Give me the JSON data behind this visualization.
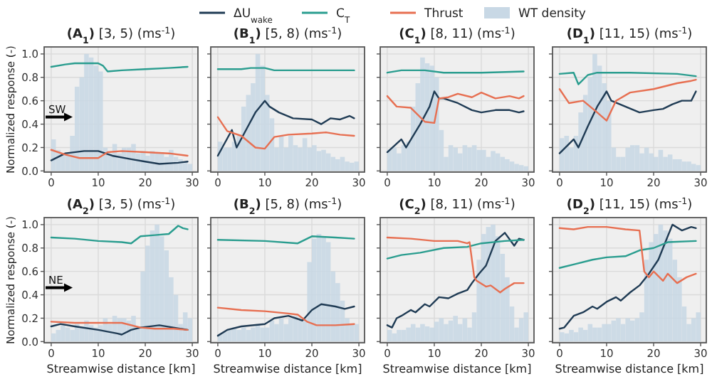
{
  "chart_data": [
    {
      "type": "line",
      "title": "(A$_{1}$) [3, 5) (ms$^{-1}$)",
      "ylabel": "Normalized response (-)",
      "xlim": [
        -1.5,
        31.2
      ],
      "ylim": [
        -0.01,
        1.06
      ],
      "xticks": [
        0,
        10,
        20,
        30
      ],
      "yticks": [
        {
          "value": 0,
          "label": "0.0"
        },
        {
          "value": 0.2,
          "label": "0.2"
        },
        {
          "value": 0.4,
          "label": "0.4"
        },
        {
          "value": 0.6,
          "label": "0.6"
        },
        {
          "value": 0.8,
          "label": "0.8"
        },
        {
          "value": 1,
          "label": "1.0"
        }
      ],
      "grid": true,
      "legend": "top",
      "annotations": [
        "SW"
      ],
      "series": [
        {
          "name": "ΔU$_{wake}$",
          "color": "#1f3b54",
          "x": [
            0,
            3,
            7,
            10,
            13,
            17,
            20,
            23,
            27,
            29
          ],
          "values": [
            0.09,
            0.15,
            0.17,
            0.17,
            0.13,
            0.1,
            0.08,
            0.06,
            0.07,
            0.08
          ]
        },
        {
          "name": "C$_{T}$",
          "color": "#2a9d8f",
          "x": [
            0,
            3,
            5,
            10,
            11,
            12,
            15,
            20,
            25,
            29
          ],
          "values": [
            0.89,
            0.91,
            0.92,
            0.92,
            0.9,
            0.85,
            0.86,
            0.87,
            0.88,
            0.89
          ]
        },
        {
          "name": "Thrust",
          "color": "#e76f51",
          "x": [
            0,
            3,
            6,
            10,
            12,
            15,
            20,
            25,
            29
          ],
          "values": [
            0.18,
            0.14,
            0.11,
            0.11,
            0.16,
            0.17,
            0.16,
            0.15,
            0.13
          ]
        },
        {
          "name": "WT density",
          "type": "histogram",
          "color": "#c8d8e5",
          "bins": [
            0,
            1,
            2,
            3,
            4,
            5,
            6,
            7,
            8,
            9,
            10,
            11,
            12,
            13,
            14,
            15,
            16,
            17,
            18,
            19,
            20,
            21,
            22,
            23,
            24,
            25,
            26,
            27,
            28,
            29,
            30
          ],
          "values": [
            0.27,
            0.18,
            0.15,
            0.15,
            0.3,
            0.72,
            0.8,
            1.0,
            0.97,
            0.9,
            0.85,
            0.2,
            0.15,
            0.23,
            0.15,
            0.2,
            0.2,
            0.23,
            0.15,
            0.17,
            0.13,
            0.17,
            0.15,
            0.16,
            0.12,
            0.18,
            0.12,
            0.1,
            0.08,
            0.06
          ]
        }
      ]
    },
    {
      "type": "line",
      "title": "(B$_{1}$) [5, 8) (ms$^{-1}$)",
      "tick_labels": "x",
      "xlim": [
        -1.5,
        31.2
      ],
      "ylim": [
        -0.01,
        1.06
      ],
      "xticks": [
        0,
        10,
        20,
        30
      ],
      "yticks": [
        {
          "value": 0,
          "label": null
        },
        {
          "value": 0.2,
          "label": null
        },
        {
          "value": 0.4,
          "label": null
        },
        {
          "value": 0.6,
          "label": null
        },
        {
          "value": 0.8,
          "label": null
        },
        {
          "value": 1,
          "label": null
        }
      ],
      "grid": true,
      "series": [
        {
          "color": "#1f3b54",
          "x": [
            0,
            3,
            4,
            6,
            8,
            10,
            11,
            13,
            16,
            20,
            22,
            24,
            26,
            28,
            29
          ],
          "values": [
            0.13,
            0.35,
            0.2,
            0.35,
            0.5,
            0.6,
            0.55,
            0.5,
            0.45,
            0.44,
            0.4,
            0.45,
            0.44,
            0.47,
            0.45
          ]
        },
        {
          "color": "#2a9d8f",
          "x": [
            0,
            5,
            7,
            10,
            12,
            20,
            29
          ],
          "values": [
            0.87,
            0.87,
            0.88,
            0.88,
            0.86,
            0.86,
            0.86
          ]
        },
        {
          "color": "#e76f51",
          "x": [
            0,
            2,
            5,
            8,
            10,
            12,
            15,
            20,
            23,
            26,
            29
          ],
          "values": [
            0.46,
            0.34,
            0.3,
            0.2,
            0.19,
            0.29,
            0.31,
            0.32,
            0.33,
            0.31,
            0.3
          ]
        },
        {
          "type": "histogram",
          "color": "#c8d8e5",
          "bins": [
            0,
            1,
            2,
            3,
            4,
            5,
            6,
            7,
            8,
            9,
            10,
            11,
            12,
            13,
            14,
            15,
            16,
            17,
            18,
            19,
            20,
            21,
            22,
            23,
            24,
            25,
            26,
            27,
            28,
            29,
            30
          ],
          "values": [
            0.25,
            0.2,
            0.2,
            0.25,
            0.3,
            0.55,
            0.65,
            0.75,
            1.0,
            0.9,
            0.65,
            0.45,
            0.2,
            0.3,
            0.2,
            0.3,
            0.22,
            0.2,
            0.28,
            0.2,
            0.22,
            0.17,
            0.18,
            0.15,
            0.12,
            0.1,
            0.12,
            0.08,
            0.07,
            0.08
          ]
        }
      ]
    },
    {
      "type": "line",
      "title": "(C$_{1}$) [8, 11) (ms$^{-1}$)",
      "tick_labels": "x",
      "xlim": [
        -1.5,
        31.2
      ],
      "ylim": [
        -0.01,
        1.06
      ],
      "xticks": [
        0,
        10,
        20,
        30
      ],
      "yticks": [
        {
          "value": 0,
          "label": null
        },
        {
          "value": 0.2,
          "label": null
        },
        {
          "value": 0.4,
          "label": null
        },
        {
          "value": 0.6,
          "label": null
        },
        {
          "value": 0.8,
          "label": null
        },
        {
          "value": 1,
          "label": null
        }
      ],
      "grid": true,
      "series": [
        {
          "color": "#1f3b54",
          "x": [
            0,
            3,
            4,
            7,
            9,
            10,
            11,
            12,
            15,
            18,
            20,
            23,
            26,
            28,
            29
          ],
          "values": [
            0.16,
            0.27,
            0.2,
            0.4,
            0.55,
            0.68,
            0.62,
            0.62,
            0.58,
            0.52,
            0.5,
            0.52,
            0.52,
            0.5,
            0.51
          ]
        },
        {
          "color": "#2a9d8f",
          "x": [
            0,
            3,
            8,
            12,
            20,
            29
          ],
          "values": [
            0.84,
            0.86,
            0.86,
            0.84,
            0.84,
            0.85
          ]
        },
        {
          "color": "#e76f51",
          "x": [
            0,
            2,
            5,
            8,
            10,
            11,
            13,
            15,
            18,
            20,
            23,
            26,
            28,
            29
          ],
          "values": [
            0.64,
            0.55,
            0.54,
            0.42,
            0.41,
            0.62,
            0.63,
            0.66,
            0.63,
            0.67,
            0.62,
            0.64,
            0.62,
            0.64
          ]
        },
        {
          "type": "histogram",
          "color": "#c8d8e5",
          "bins": [
            0,
            1,
            2,
            3,
            4,
            5,
            6,
            7,
            8,
            9,
            10,
            11,
            12,
            13,
            14,
            15,
            16,
            17,
            18,
            19,
            20,
            21,
            22,
            23,
            24,
            25,
            26,
            27,
            28,
            29,
            30
          ],
          "values": [
            0.18,
            0.2,
            0.15,
            0.22,
            0.25,
            0.55,
            0.75,
            0.97,
            0.92,
            0.9,
            0.8,
            0.35,
            0.12,
            0.22,
            0.2,
            0.15,
            0.22,
            0.2,
            0.22,
            0.18,
            0.18,
            0.12,
            0.17,
            0.15,
            0.12,
            0.1,
            0.08,
            0.06,
            0.05,
            0.04
          ]
        }
      ]
    },
    {
      "type": "line",
      "title": "(D$_{1}$) [11, 15) (ms$^{-1}$)",
      "tick_labels": "x",
      "xlim": [
        -1.5,
        31.2
      ],
      "ylim": [
        -0.01,
        1.06
      ],
      "xticks": [
        0,
        10,
        20,
        30
      ],
      "yticks": [
        {
          "value": 0,
          "label": null
        },
        {
          "value": 0.2,
          "label": null
        },
        {
          "value": 0.4,
          "label": null
        },
        {
          "value": 0.6,
          "label": null
        },
        {
          "value": 0.8,
          "label": null
        },
        {
          "value": 1,
          "label": null
        }
      ],
      "grid": true,
      "series": [
        {
          "color": "#1f3b54",
          "x": [
            0,
            3,
            4,
            6,
            8,
            10,
            11,
            14,
            17,
            20,
            22,
            24,
            26,
            28,
            29
          ],
          "values": [
            0.15,
            0.27,
            0.2,
            0.38,
            0.55,
            0.68,
            0.6,
            0.55,
            0.5,
            0.52,
            0.53,
            0.57,
            0.6,
            0.6,
            0.68
          ]
        },
        {
          "color": "#2a9d8f",
          "x": [
            0,
            3,
            4,
            6,
            8,
            15,
            25,
            29
          ],
          "values": [
            0.83,
            0.84,
            0.74,
            0.82,
            0.84,
            0.84,
            0.83,
            0.81
          ]
        },
        {
          "color": "#e76f51",
          "x": [
            0,
            2,
            5,
            8,
            10,
            12,
            15,
            20,
            25,
            28,
            29
          ],
          "values": [
            0.7,
            0.58,
            0.6,
            0.5,
            0.43,
            0.6,
            0.67,
            0.7,
            0.75,
            0.77,
            0.78
          ]
        },
        {
          "type": "histogram",
          "color": "#c8d8e5",
          "bins": [
            0,
            1,
            2,
            3,
            4,
            5,
            6,
            7,
            8,
            9,
            10,
            11,
            12,
            13,
            14,
            15,
            16,
            17,
            18,
            19,
            20,
            21,
            22,
            23,
            24,
            25,
            26,
            27,
            28,
            29,
            30
          ],
          "values": [
            0.28,
            0.3,
            0.2,
            0.3,
            0.5,
            0.65,
            0.8,
            1.0,
            0.9,
            0.75,
            0.6,
            0.2,
            0.12,
            0.12,
            0.2,
            0.22,
            0.22,
            0.15,
            0.2,
            0.15,
            0.12,
            0.18,
            0.12,
            0.14,
            0.1,
            0.1,
            0.08,
            0.08,
            0.06,
            0.05
          ]
        }
      ]
    },
    {
      "type": "line",
      "title": "(A$_{2}$) [3, 5) (ms$^{-1}$)",
      "xlabel": "Streamwise distance [km]",
      "ylabel": "Normalized response (-)",
      "xlim": [
        -1.5,
        31.2
      ],
      "ylim": [
        -0.01,
        1.06
      ],
      "xticks": [
        0,
        10,
        20,
        30
      ],
      "yticks": [
        {
          "value": 0,
          "label": "0.0"
        },
        {
          "value": 0.2,
          "label": "0.2"
        },
        {
          "value": 0.4,
          "label": "0.4"
        },
        {
          "value": 0.6,
          "label": "0.6"
        },
        {
          "value": 0.8,
          "label": "0.8"
        },
        {
          "value": 1,
          "label": "1.0"
        }
      ],
      "grid": true,
      "annotations": [
        "NE"
      ],
      "series": [
        {
          "color": "#1f3b54",
          "x": [
            0,
            2,
            5,
            10,
            14,
            15,
            17,
            19,
            23,
            26,
            29
          ],
          "values": [
            0.13,
            0.15,
            0.13,
            0.1,
            0.07,
            0.06,
            0.1,
            0.12,
            0.14,
            0.12,
            0.1
          ]
        },
        {
          "color": "#2a9d8f",
          "x": [
            0,
            5,
            10,
            15,
            17,
            19,
            22,
            25,
            27,
            28,
            29
          ],
          "values": [
            0.89,
            0.88,
            0.86,
            0.85,
            0.84,
            0.9,
            0.91,
            0.92,
            0.99,
            0.97,
            0.96
          ]
        },
        {
          "color": "#e76f51",
          "x": [
            0,
            5,
            10,
            15,
            19,
            22,
            26,
            29
          ],
          "values": [
            0.17,
            0.16,
            0.16,
            0.16,
            0.12,
            0.11,
            0.11,
            0.1
          ]
        },
        {
          "type": "histogram",
          "color": "#c8d8e5",
          "bins": [
            0,
            1,
            2,
            3,
            4,
            5,
            6,
            7,
            8,
            9,
            10,
            11,
            12,
            13,
            14,
            15,
            16,
            17,
            18,
            19,
            20,
            21,
            22,
            23,
            24,
            25,
            26,
            27,
            28,
            29,
            30
          ],
          "values": [
            0.07,
            0.1,
            0.15,
            0.12,
            0.1,
            0.15,
            0.13,
            0.18,
            0.14,
            0.12,
            0.14,
            0.2,
            0.15,
            0.22,
            0.2,
            0.2,
            0.18,
            0.22,
            0.12,
            0.6,
            0.82,
            0.95,
            1.0,
            0.9,
            0.78,
            0.55,
            0.4,
            0.15,
            0.25,
            0.2
          ]
        }
      ]
    },
    {
      "type": "line",
      "title": "(B$_{2}$) [5, 8) (ms$^{-1}$)",
      "xlabel": "Streamwise distance [km]",
      "tick_labels": "x",
      "xlim": [
        -1.5,
        31.2
      ],
      "ylim": [
        -0.01,
        1.06
      ],
      "xticks": [
        0,
        10,
        20,
        30
      ],
      "yticks": [
        {
          "value": 0,
          "label": null
        },
        {
          "value": 0.2,
          "label": null
        },
        {
          "value": 0.4,
          "label": null
        },
        {
          "value": 0.6,
          "label": null
        },
        {
          "value": 0.8,
          "label": null
        },
        {
          "value": 1,
          "label": null
        }
      ],
      "grid": true,
      "series": [
        {
          "color": "#1f3b54",
          "x": [
            0,
            2,
            5,
            10,
            12,
            15,
            18,
            20,
            22,
            25,
            27,
            29
          ],
          "values": [
            0.05,
            0.1,
            0.13,
            0.15,
            0.2,
            0.22,
            0.18,
            0.27,
            0.32,
            0.3,
            0.28,
            0.3
          ]
        },
        {
          "color": "#2a9d8f",
          "x": [
            0,
            10,
            17,
            19,
            20,
            25,
            29
          ],
          "values": [
            0.87,
            0.86,
            0.84,
            0.88,
            0.9,
            0.89,
            0.88
          ]
        },
        {
          "color": "#e76f51",
          "x": [
            0,
            5,
            10,
            15,
            17,
            19,
            21,
            25,
            29
          ],
          "values": [
            0.29,
            0.27,
            0.26,
            0.24,
            0.23,
            0.17,
            0.14,
            0.14,
            0.15
          ]
        },
        {
          "type": "histogram",
          "color": "#c8d8e5",
          "bins": [
            0,
            1,
            2,
            3,
            4,
            5,
            6,
            7,
            8,
            9,
            10,
            11,
            12,
            13,
            14,
            15,
            16,
            17,
            18,
            19,
            20,
            21,
            22,
            23,
            24,
            25,
            26,
            27,
            28,
            29,
            30
          ],
          "values": [
            0.06,
            0.08,
            0.1,
            0.12,
            0.1,
            0.12,
            0.1,
            0.12,
            0.15,
            0.12,
            0.12,
            0.18,
            0.15,
            0.2,
            0.15,
            0.2,
            0.22,
            0.18,
            0.2,
            0.68,
            0.88,
            0.92,
            0.9,
            0.85,
            0.6,
            0.5,
            0.35,
            0.2,
            0.15,
            0.15
          ]
        }
      ]
    },
    {
      "type": "line",
      "title": "(C$_{2}$) [8, 11) (ms$^{-1}$)",
      "xlabel": "Streamwise distance [km]",
      "tick_labels": "x",
      "xlim": [
        -1.5,
        31.2
      ],
      "ylim": [
        -0.01,
        1.06
      ],
      "xticks": [
        0,
        10,
        20,
        30
      ],
      "yticks": [
        {
          "value": 0,
          "label": null
        },
        {
          "value": 0.2,
          "label": null
        },
        {
          "value": 0.4,
          "label": null
        },
        {
          "value": 0.6,
          "label": null
        },
        {
          "value": 0.8,
          "label": null
        },
        {
          "value": 1,
          "label": null
        }
      ],
      "grid": true,
      "series": [
        {
          "color": "#1f3b54",
          "x": [
            0,
            1,
            2,
            3,
            5,
            6,
            8,
            9,
            11,
            13,
            15,
            17,
            18,
            19.5,
            21,
            23,
            25,
            27,
            28,
            29
          ],
          "values": [
            0.14,
            0.12,
            0.2,
            0.22,
            0.27,
            0.25,
            0.32,
            0.3,
            0.38,
            0.37,
            0.41,
            0.44,
            0.5,
            0.58,
            0.65,
            0.86,
            0.93,
            0.82,
            0.88,
            0.87
          ]
        },
        {
          "color": "#2a9d8f",
          "x": [
            0,
            3,
            7,
            12,
            17,
            20,
            25,
            29
          ],
          "values": [
            0.71,
            0.74,
            0.76,
            0.8,
            0.81,
            0.84,
            0.86,
            0.87
          ]
        },
        {
          "color": "#e76f51",
          "x": [
            0,
            5,
            10,
            15,
            17,
            17.5,
            18.5,
            19,
            21,
            22,
            24,
            25,
            27,
            29
          ],
          "values": [
            0.89,
            0.88,
            0.86,
            0.86,
            0.84,
            0.85,
            0.55,
            0.52,
            0.47,
            0.48,
            0.42,
            0.45,
            0.5,
            0.5
          ]
        },
        {
          "type": "histogram",
          "color": "#c8d8e5",
          "bins": [
            0,
            1,
            2,
            3,
            4,
            5,
            6,
            7,
            8,
            9,
            10,
            11,
            12,
            13,
            14,
            15,
            16,
            17,
            18,
            19,
            20,
            21,
            22,
            23,
            24,
            25,
            26,
            27,
            28,
            29,
            30
          ],
          "values": [
            0.1,
            0.07,
            0.1,
            0.1,
            0.12,
            0.15,
            0.12,
            0.15,
            0.13,
            0.12,
            0.17,
            0.2,
            0.15,
            0.18,
            0.22,
            0.15,
            0.2,
            0.12,
            0.25,
            0.7,
            0.92,
            0.98,
            1.0,
            0.9,
            0.75,
            0.55,
            0.3,
            0.12,
            0.2,
            0.25
          ]
        }
      ]
    },
    {
      "type": "line",
      "title": "(D$_{2}$) [11, 15) (ms$^{-1}$)",
      "xlabel": "Streamwise distance [km]",
      "tick_labels": "x",
      "xlim": [
        -1.5,
        31.2
      ],
      "ylim": [
        -0.01,
        1.06
      ],
      "xticks": [
        0,
        10,
        20,
        30
      ],
      "yticks": [
        {
          "value": 0,
          "label": null
        },
        {
          "value": 0.2,
          "label": null
        },
        {
          "value": 0.4,
          "label": null
        },
        {
          "value": 0.6,
          "label": null
        },
        {
          "value": 0.8,
          "label": null
        },
        {
          "value": 1,
          "label": null
        }
      ],
      "grid": true,
      "series": [
        {
          "color": "#1f3b54",
          "x": [
            0,
            1,
            3,
            5,
            7,
            8,
            10,
            12,
            13,
            15,
            17,
            19,
            21,
            23,
            24,
            26,
            28,
            29
          ],
          "values": [
            0.11,
            0.12,
            0.22,
            0.25,
            0.3,
            0.28,
            0.34,
            0.38,
            0.35,
            0.42,
            0.48,
            0.58,
            0.7,
            0.9,
            1.0,
            0.95,
            0.98,
            0.97
          ]
        },
        {
          "color": "#2a9d8f",
          "x": [
            0,
            3,
            7,
            10,
            14,
            17,
            20,
            23,
            29
          ],
          "values": [
            0.63,
            0.66,
            0.7,
            0.72,
            0.73,
            0.78,
            0.8,
            0.85,
            0.86
          ]
        },
        {
          "color": "#e76f51",
          "x": [
            0,
            3,
            6,
            10,
            14,
            17,
            18,
            19,
            20,
            22,
            23,
            25,
            27,
            29
          ],
          "values": [
            0.97,
            0.96,
            0.98,
            0.98,
            0.96,
            0.95,
            0.6,
            0.55,
            0.6,
            0.52,
            0.58,
            0.5,
            0.55,
            0.58
          ]
        },
        {
          "type": "histogram",
          "color": "#c8d8e5",
          "bins": [
            0,
            1,
            2,
            3,
            4,
            5,
            6,
            7,
            8,
            9,
            10,
            11,
            12,
            13,
            14,
            15,
            16,
            17,
            18,
            19,
            20,
            21,
            22,
            23,
            24,
            25,
            26,
            27,
            28,
            29,
            30
          ],
          "values": [
            0.08,
            0.07,
            0.1,
            0.08,
            0.12,
            0.1,
            0.15,
            0.12,
            0.12,
            0.15,
            0.15,
            0.18,
            0.2,
            0.15,
            0.2,
            0.18,
            0.2,
            0.25,
            0.7,
            0.85,
            0.92,
            1.0,
            0.95,
            0.88,
            0.7,
            0.55,
            0.3,
            0.15,
            0.2,
            0.25
          ]
        }
      ]
    }
  ]
}
